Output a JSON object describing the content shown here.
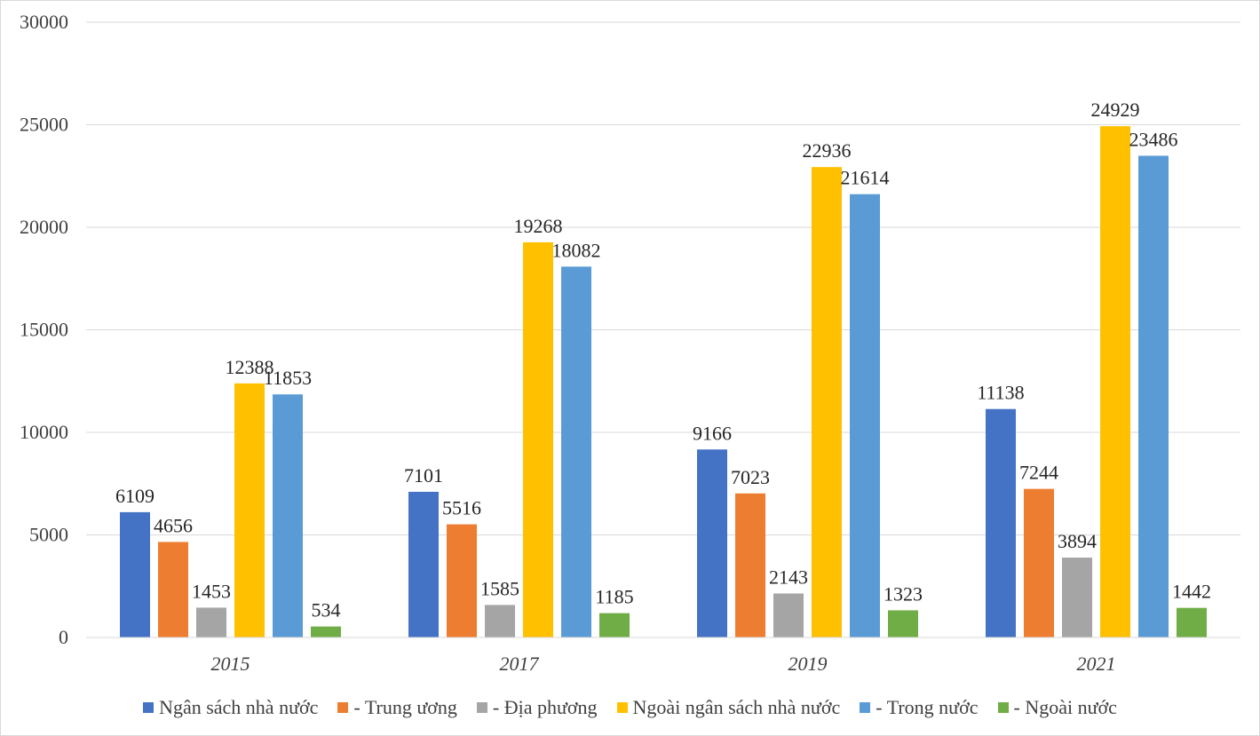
{
  "chart_data": {
    "type": "bar",
    "categories": [
      "2015",
      "2017",
      "2019",
      "2021"
    ],
    "series": [
      {
        "name": "Ngân sách nhà nước",
        "color": "#4472C4",
        "values": [
          6109,
          7101,
          9166,
          11138
        ]
      },
      {
        "name": "- Trung ương",
        "color": "#ED7D31",
        "values": [
          4656,
          5516,
          7023,
          7244
        ]
      },
      {
        "name": "- Địa phương",
        "color": "#A5A5A5",
        "values": [
          1453,
          1585,
          2143,
          3894
        ]
      },
      {
        "name": "Ngoài ngân sách nhà nước",
        "color": "#FFC000",
        "values": [
          12388,
          19268,
          22936,
          24929
        ]
      },
      {
        "name": "- Trong nước",
        "color": "#5B9BD5",
        "values": [
          11853,
          18082,
          21614,
          23486
        ]
      },
      {
        "name": "- Ngoài nước",
        "color": "#70AD47",
        "values": [
          534,
          1185,
          1323,
          1442
        ]
      }
    ],
    "yticks": [
      "0",
      "5000",
      "10000",
      "15000",
      "20000",
      "25000",
      "30000"
    ],
    "ylim": [
      0,
      30000
    ],
    "grid": true,
    "legend_position": "bottom"
  }
}
